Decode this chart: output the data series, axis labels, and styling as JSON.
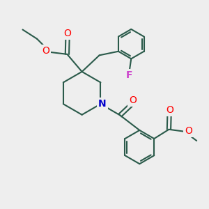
{
  "bg_color": "#eeeeee",
  "bond_color": "#2a5a4a",
  "o_color": "#ff0000",
  "n_color": "#0000cc",
  "f_color": "#cc44cc",
  "lw": 1.5,
  "xlim": [
    0,
    10
  ],
  "ylim": [
    0,
    10
  ]
}
